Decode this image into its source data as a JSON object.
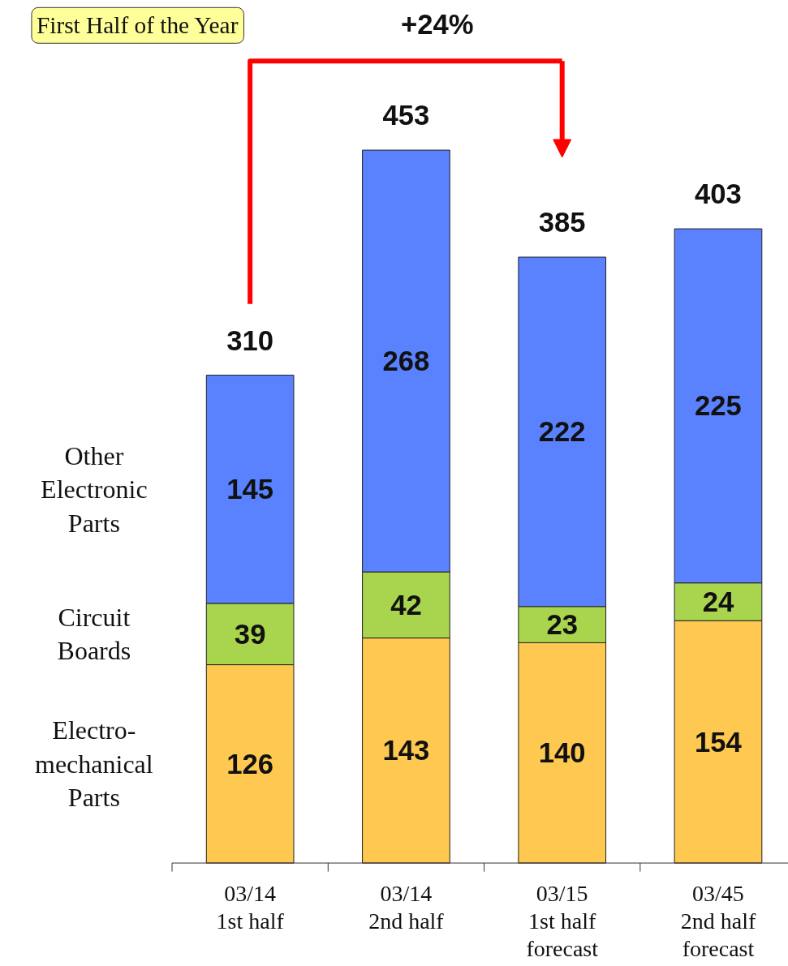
{
  "chart_data": {
    "type": "bar",
    "stacked": true,
    "data_labels": true,
    "categories": [
      "03/14 1st half",
      "03/14 2nd half",
      "03/15 1st half forecast",
      "03/45 2nd half forecast"
    ],
    "series": [
      {
        "name": "Electro-mechanical Parts",
        "color": "#ffc850",
        "values": [
          126,
          143,
          140,
          154
        ]
      },
      {
        "name": "Circuit Boards",
        "color": "#a8d44e",
        "values": [
          39,
          42,
          23,
          24
        ]
      },
      {
        "name": "Other Electronic Parts",
        "color": "#5a82ff",
        "values": [
          145,
          268,
          222,
          225
        ]
      }
    ],
    "totals": [
      "310",
      "453",
      "385",
      "403"
    ],
    "annotations": [
      "First Half of the Year",
      "+24%"
    ]
  }
}
